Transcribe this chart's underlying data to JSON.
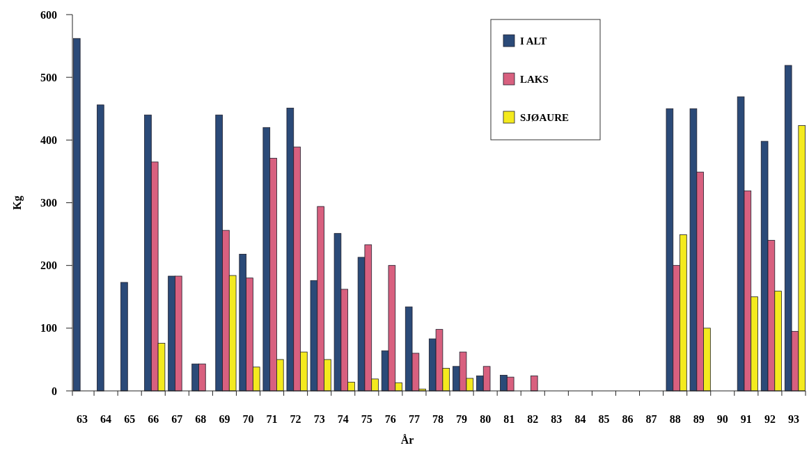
{
  "chart_data": {
    "type": "bar",
    "xlabel": "År",
    "ylabel": "Kg",
    "categories": [
      "63",
      "64",
      "65",
      "66",
      "67",
      "68",
      "69",
      "70",
      "71",
      "72",
      "73",
      "74",
      "75",
      "76",
      "77",
      "78",
      "79",
      "80",
      "81",
      "82",
      "83",
      "84",
      "85",
      "86",
      "87",
      "88",
      "89",
      "90",
      "91",
      "92",
      "93"
    ],
    "series": [
      {
        "name": "I ALT",
        "color": "#2b4a78",
        "values": [
          562,
          456,
          173,
          440,
          183,
          43,
          440,
          218,
          420,
          451,
          176,
          251,
          213,
          64,
          134,
          83,
          39,
          24,
          25,
          null,
          null,
          null,
          null,
          null,
          null,
          450,
          450,
          null,
          469,
          398,
          519
        ]
      },
      {
        "name": "LAKS",
        "color": "#d8607f",
        "values": [
          null,
          null,
          null,
          365,
          183,
          43,
          256,
          180,
          371,
          389,
          294,
          162,
          233,
          200,
          60,
          98,
          62,
          39,
          22,
          24,
          null,
          null,
          null,
          null,
          null,
          200,
          349,
          null,
          319,
          240,
          95
        ]
      },
      {
        "name": "SJØAURE",
        "color": "#f4ea1e",
        "values": [
          null,
          null,
          null,
          76,
          null,
          null,
          184,
          38,
          50,
          62,
          50,
          14,
          19,
          13,
          3,
          36,
          20,
          null,
          null,
          null,
          null,
          null,
          null,
          null,
          null,
          249,
          100,
          null,
          150,
          159,
          423
        ]
      }
    ],
    "ylim": [
      0,
      600
    ],
    "yticks": [
      0,
      100,
      200,
      300,
      400,
      500,
      600
    ],
    "legend": "top right"
  }
}
